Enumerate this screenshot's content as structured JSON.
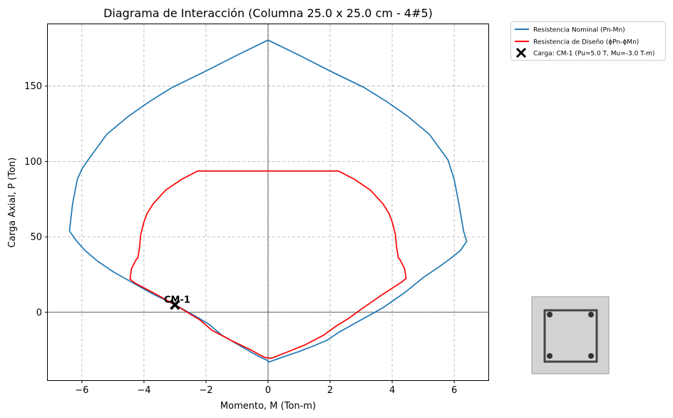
{
  "chart_data": {
    "type": "line",
    "title": "Diagrama de Interacción (Columna 25.0 x 25.0 cm - 4#5)",
    "xlabel": "Momento, M (Ton-m)",
    "ylabel": "Carga Axial, P (Ton)",
    "xlim": [
      -7.1,
      7.1
    ],
    "ylim": [
      -45,
      191
    ],
    "xticks": [
      -6,
      -4,
      -2,
      0,
      2,
      4,
      6
    ],
    "yticks": [
      0,
      50,
      100,
      150
    ],
    "xtick_labels": [
      "−6",
      "−4",
      "−2",
      "0",
      "2",
      "4",
      "6"
    ],
    "ytick_labels": [
      "0",
      "50",
      "100",
      "150"
    ],
    "grid": true,
    "legend_position": "outside-top-right",
    "series": [
      {
        "name": "Resistencia Nominal (Pn-Mn)",
        "color": "#1f77b4",
        "x": [
          0.0,
          -1.0,
          -2.0,
          -3.1,
          -3.8,
          -4.5,
          -5.2,
          -5.8,
          -6.0,
          -6.15,
          -6.3,
          -6.4,
          -6.2,
          -5.9,
          -5.5,
          -5.0,
          -4.4,
          -3.7,
          -3.0,
          -2.3,
          -1.9,
          -1.5,
          -1.0,
          -0.5,
          -0.02,
          0.02,
          0.5,
          1.0,
          1.5,
          1.9,
          2.3,
          3.0,
          3.7,
          4.4,
          5.0,
          5.5,
          5.9,
          6.2,
          6.4,
          6.3,
          6.15,
          6.0,
          5.8,
          5.2,
          4.5,
          3.8,
          3.1,
          2.0,
          1.0,
          0.0
        ],
        "y": [
          180.5,
          170.5,
          160.0,
          149.0,
          140.0,
          130.0,
          118.0,
          101.0,
          95.0,
          88.0,
          72.0,
          54.0,
          48.0,
          41.0,
          34.0,
          27.0,
          20.0,
          12.0,
          5.0,
          -3.0,
          -8.0,
          -15.0,
          -21.0,
          -27.0,
          -32.0,
          -33.0,
          -29.5,
          -26.0,
          -22.0,
          -18.5,
          -13.0,
          -5.0,
          3.0,
          13.0,
          23.0,
          30.0,
          36.0,
          41.0,
          47.0,
          54.0,
          72.0,
          88.0,
          101.0,
          118.0,
          130.0,
          140.0,
          149.0,
          160.0,
          170.5,
          180.5
        ]
      },
      {
        "name": "Resistencia de Diseño (ϕPn-ϕMn)",
        "color": "#ff0000",
        "x": [
          0.0,
          -1.0,
          -2.27,
          -2.8,
          -3.3,
          -3.7,
          -3.9,
          -4.0,
          -4.1,
          -4.15,
          -4.2,
          -4.25,
          -4.4,
          -4.45,
          -4.3,
          -3.7,
          -3.0,
          -2.6,
          -2.2,
          -1.8,
          -1.2,
          -0.6,
          -0.1,
          0.1,
          0.6,
          1.2,
          1.8,
          2.2,
          2.6,
          3.0,
          3.7,
          4.3,
          4.45,
          4.4,
          4.25,
          4.2,
          4.15,
          4.1,
          4.0,
          3.9,
          3.7,
          3.3,
          2.8,
          2.27,
          1.0,
          0.0
        ],
        "y": [
          93.7,
          93.7,
          93.7,
          88.0,
          81.0,
          72.0,
          65.5,
          60.0,
          52.0,
          42.0,
          36.0,
          35.0,
          29.0,
          22.0,
          19.5,
          13.0,
          5.0,
          0.0,
          -5.0,
          -12.0,
          -18.5,
          -24.5,
          -30.0,
          -30.5,
          -26.5,
          -21.5,
          -15.0,
          -9.0,
          -4.0,
          2.0,
          12.0,
          20.0,
          22.5,
          29.0,
          35.0,
          36.0,
          42.0,
          52.0,
          60.0,
          65.5,
          72.0,
          81.0,
          88.0,
          93.7,
          93.7,
          93.7
        ]
      }
    ],
    "points": [
      {
        "name": "Carga: CM-1 (Pu=5.0 T, Mu=-3.0 T-m)",
        "label": "CM-1",
        "x": -3.0,
        "y": 5.0,
        "marker": "x",
        "color": "#000000"
      }
    ]
  },
  "section_inset": {
    "fill_color": "#d3d3d3",
    "edge_color": "#999999",
    "stirrup_color": "#444444",
    "bar_color": "#333333",
    "bar_count": 4
  }
}
